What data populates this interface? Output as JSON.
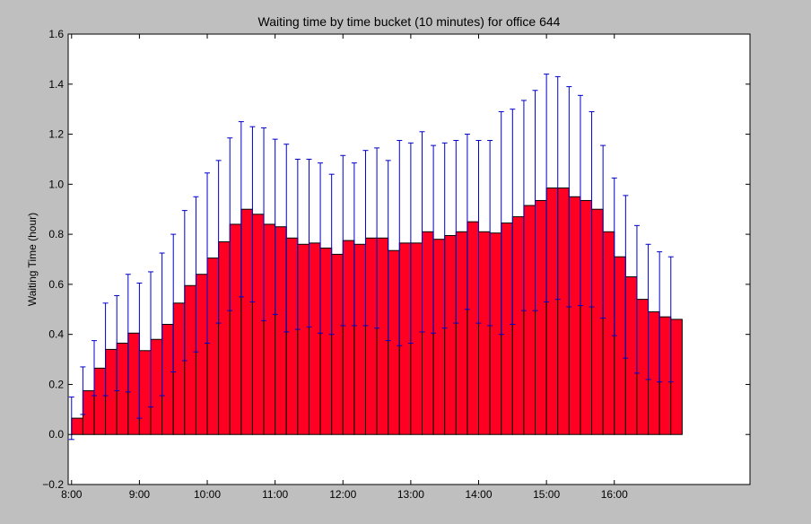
{
  "chart_data": {
    "type": "bar",
    "title": "Waiting time by time bucket (10 minutes) for office 644",
    "xlabel": "",
    "ylabel": "Waiting Time (hour)",
    "x_start": "8:00",
    "bucket_minutes": 10,
    "xlim": [
      "7:57",
      "18:00"
    ],
    "ylim": [
      -0.2,
      1.6
    ],
    "y_ticks": [
      "−0.2",
      "0.0",
      "0.2",
      "0.4",
      "0.6",
      "0.8",
      "1.0",
      "1.2",
      "1.4",
      "1.6"
    ],
    "x_ticks": [
      "8:00",
      "9:00",
      "10:00",
      "11:00",
      "12:00",
      "13:00",
      "14:00",
      "15:00",
      "16:00"
    ],
    "grid": false,
    "legend": "none",
    "values": [
      0.065,
      0.175,
      0.265,
      0.34,
      0.365,
      0.405,
      0.335,
      0.38,
      0.44,
      0.525,
      0.595,
      0.64,
      0.705,
      0.77,
      0.84,
      0.9,
      0.88,
      0.84,
      0.83,
      0.785,
      0.76,
      0.765,
      0.745,
      0.72,
      0.775,
      0.76,
      0.785,
      0.785,
      0.735,
      0.765,
      0.765,
      0.81,
      0.78,
      0.795,
      0.81,
      0.85,
      0.81,
      0.805,
      0.845,
      0.87,
      0.915,
      0.935,
      0.985,
      0.985,
      0.95,
      0.935,
      0.9,
      0.81,
      0.71,
      0.63,
      0.54,
      0.49,
      0.47,
      0.46
    ],
    "error_upper": [
      0.15,
      0.27,
      0.375,
      0.525,
      0.555,
      0.64,
      0.605,
      0.65,
      0.725,
      0.8,
      0.895,
      0.95,
      1.045,
      1.095,
      1.185,
      1.25,
      1.23,
      1.225,
      1.18,
      1.16,
      1.1,
      1.1,
      1.085,
      1.04,
      1.115,
      1.085,
      1.135,
      1.145,
      1.095,
      1.175,
      1.165,
      1.21,
      1.155,
      1.165,
      1.175,
      1.2,
      1.175,
      1.175,
      1.29,
      1.3,
      1.335,
      1.375,
      1.44,
      1.43,
      1.39,
      1.355,
      1.29,
      1.155,
      1.025,
      0.955,
      0.835,
      0.76,
      0.73,
      0.71
    ],
    "bar_color": "#ff0022",
    "bar_edge_color": "#000000",
    "errorbar_color": "#0000cc"
  }
}
